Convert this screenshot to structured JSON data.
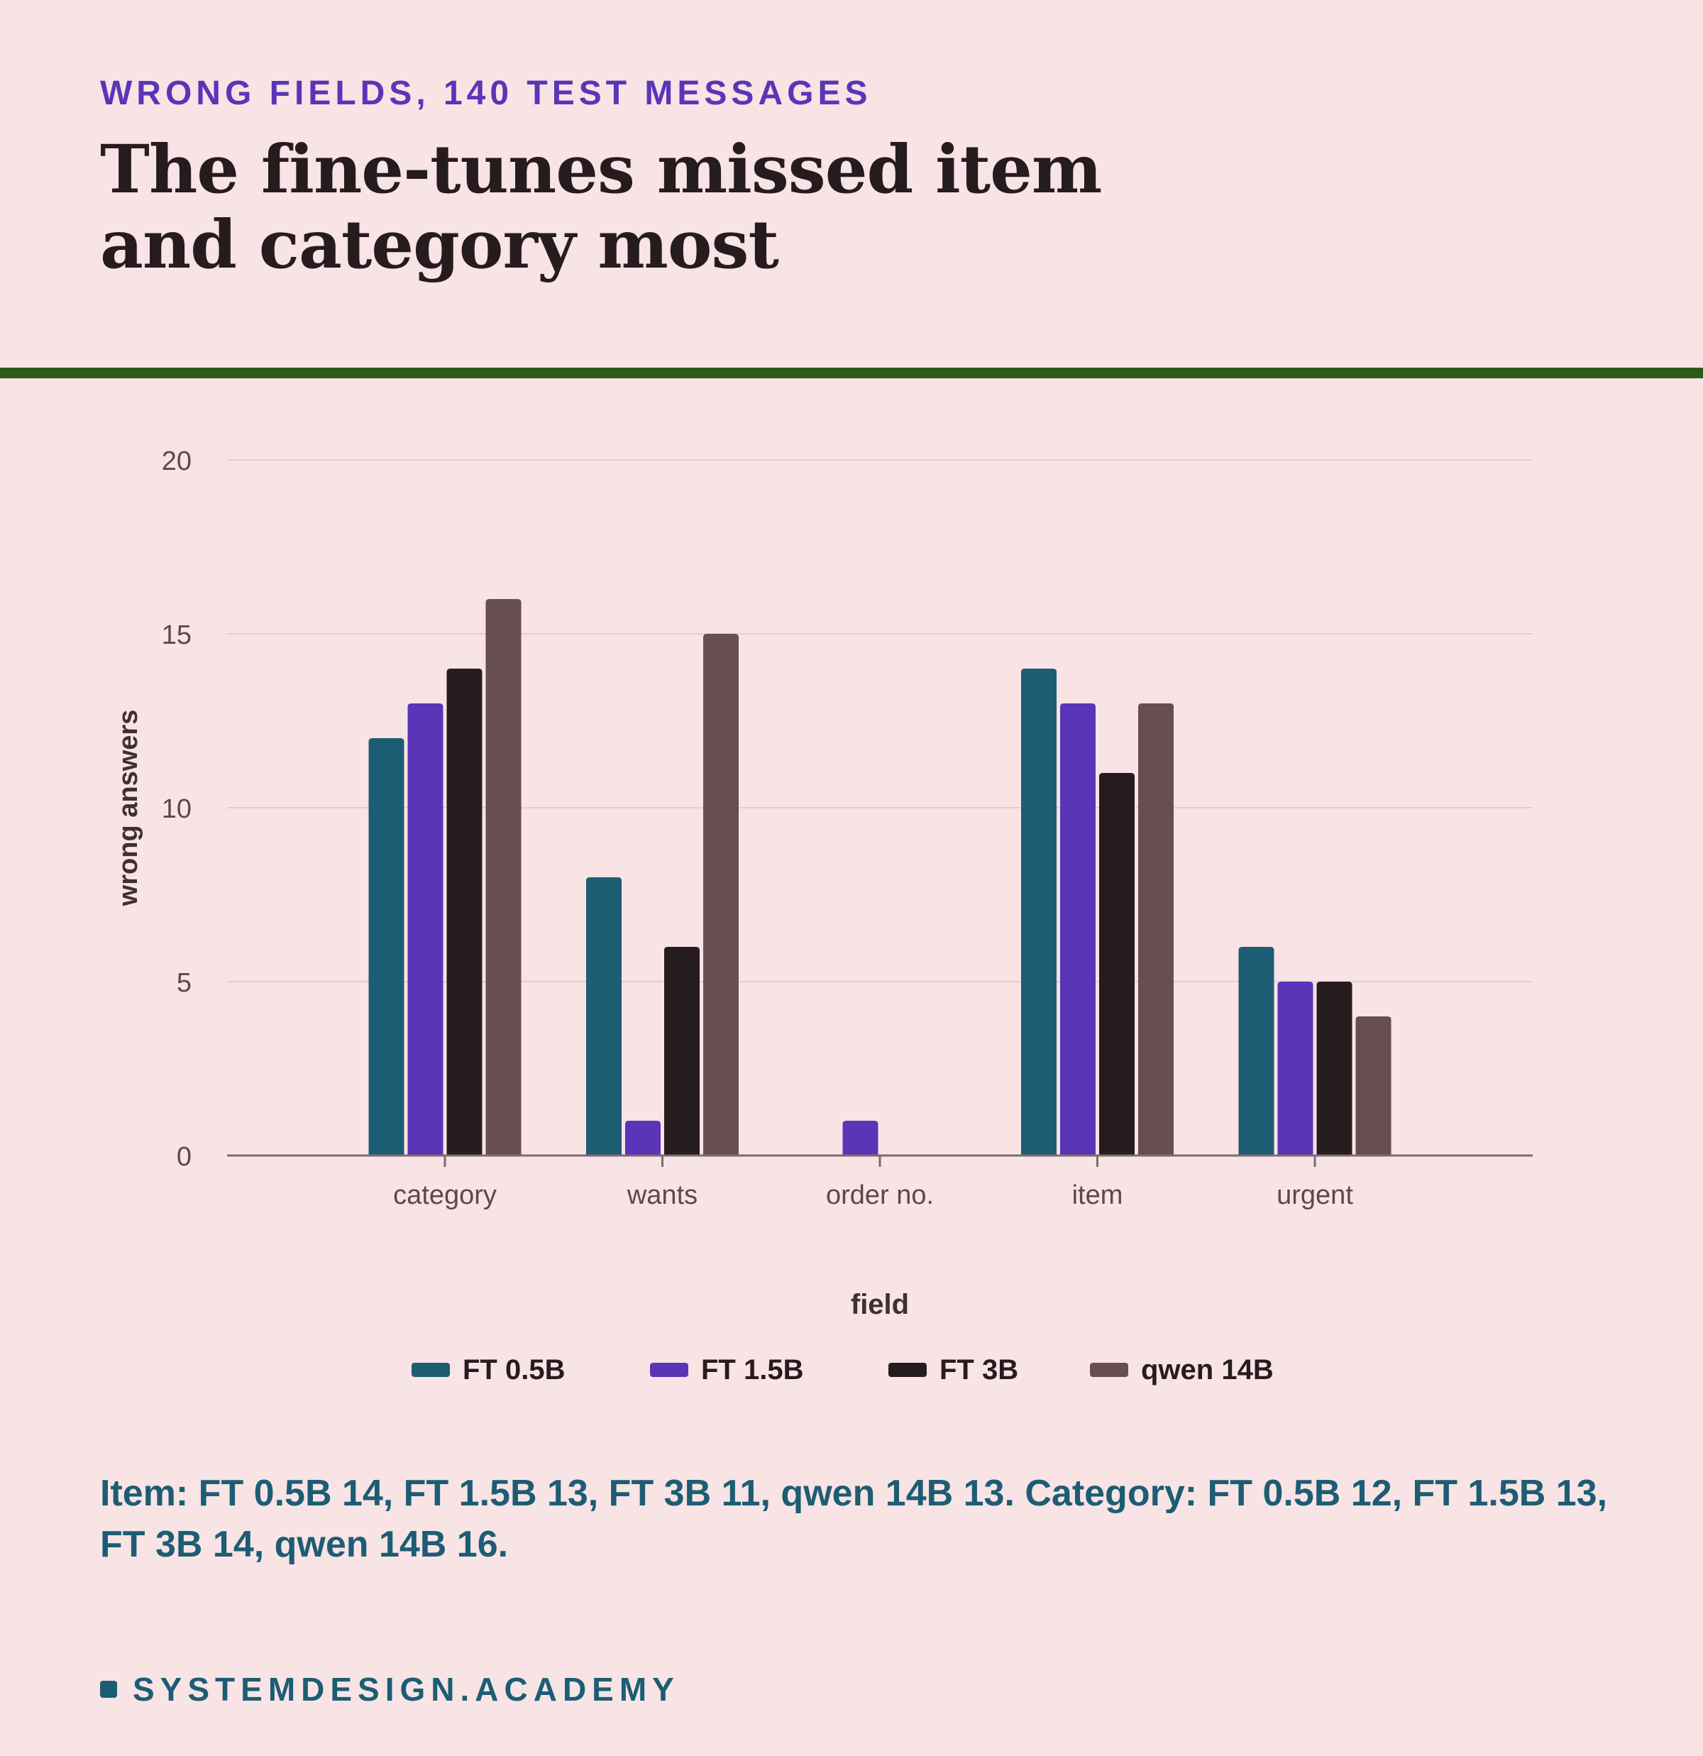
{
  "header": {
    "eyebrow": "WRONG FIELDS, 140 TEST MESSAGES",
    "title": "The fine-tunes missed item and category most"
  },
  "caption": "Item: FT 0.5B 14, FT 1.5B 13, FT 3B 11, qwen 14B 13. Category: FT 0.5B 12, FT 1.5B 13, FT 3B 14, qwen 14B 16.",
  "footer": {
    "brand": "SYSTEMDESIGN.ACADEMY"
  },
  "colors": {
    "background": "#f8e3e5",
    "accent_rule": "#2e5a18",
    "eyebrow": "#5a35b8",
    "caption": "#1c5d74",
    "grid": "#e2cdd1",
    "axis": "#7c6c70"
  },
  "chart_data": {
    "type": "bar",
    "title": "The fine-tunes missed item and category most",
    "xlabel": "field",
    "ylabel": "wrong answers",
    "categories": [
      "category",
      "wants",
      "order no.",
      "item",
      "urgent"
    ],
    "ylim": [
      0,
      20
    ],
    "yticks": [
      0,
      5,
      10,
      15,
      20
    ],
    "grid": true,
    "legend_position": "bottom",
    "series": [
      {
        "name": "FT 0.5B",
        "color": "#1c5d74",
        "values": [
          12,
          8,
          0,
          14,
          6
        ]
      },
      {
        "name": "FT 1.5B",
        "color": "#5a35b8",
        "values": [
          13,
          1,
          1,
          13,
          5
        ]
      },
      {
        "name": "FT 3B",
        "color": "#261c20",
        "values": [
          14,
          6,
          0,
          11,
          5
        ]
      },
      {
        "name": "qwen 14B",
        "color": "#684e51",
        "values": [
          16,
          15,
          0,
          13,
          4
        ]
      }
    ]
  }
}
